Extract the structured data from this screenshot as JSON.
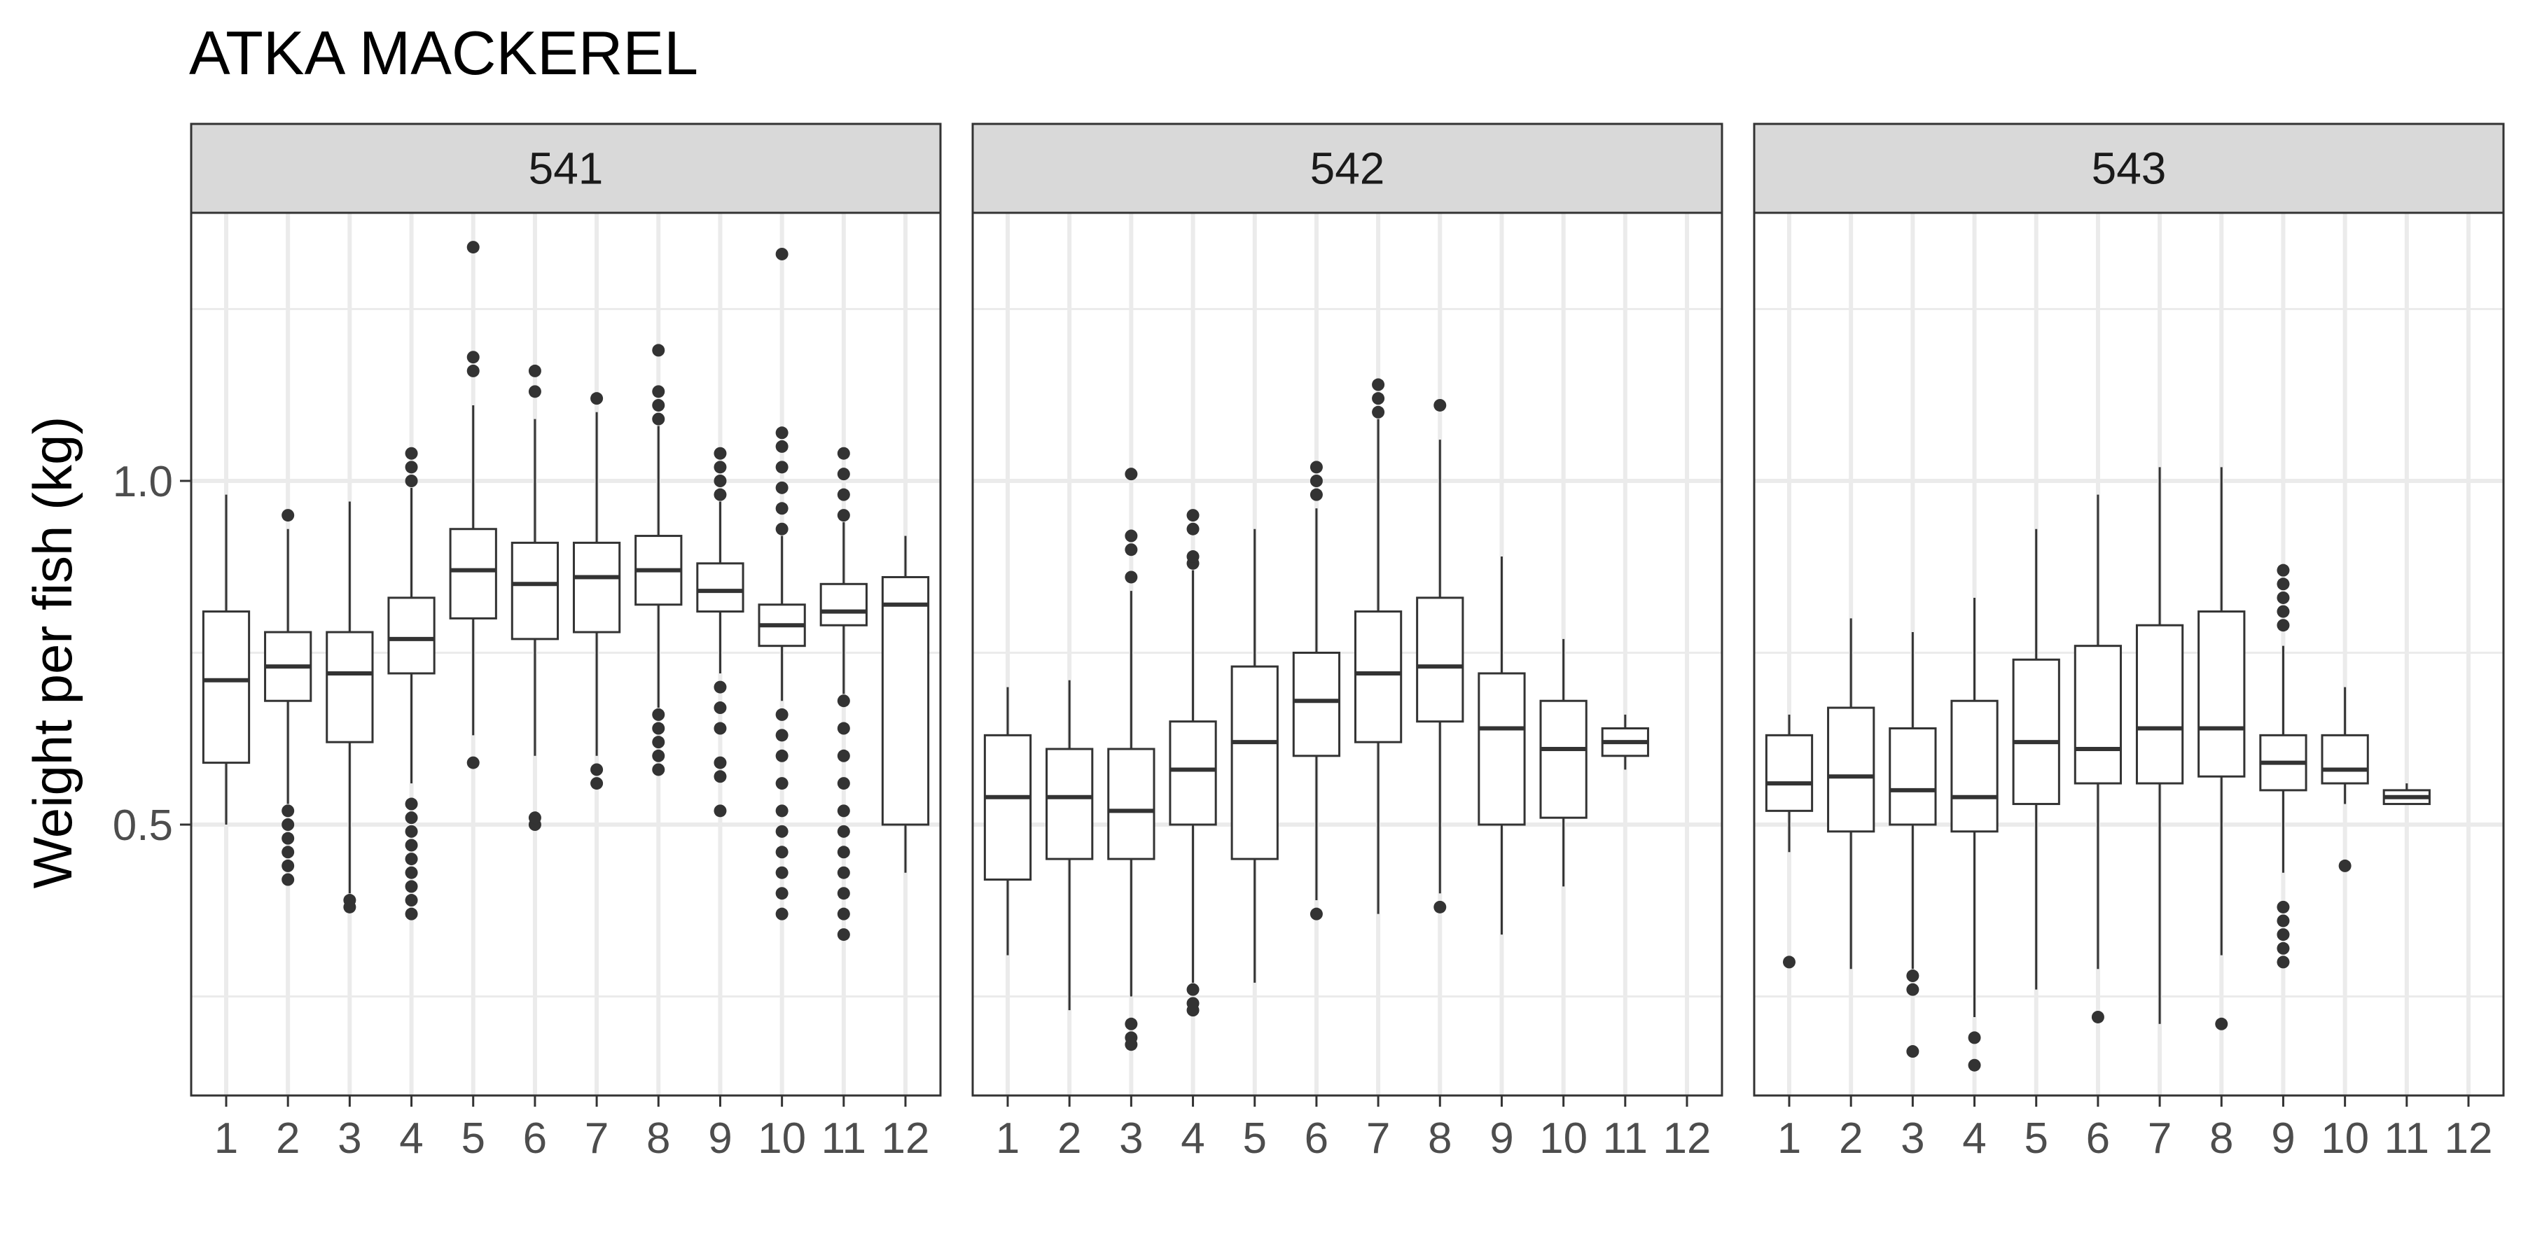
{
  "chart_data": {
    "type": "boxplot",
    "title": "ATKA MACKEREL",
    "xlabel": "",
    "ylabel": "Weight per fish (kg)",
    "ylim": [
      0.0,
      1.4
    ],
    "y_ticks": [
      0.5,
      1.0
    ],
    "y_tick_labels": [
      "0.5",
      "1.0"
    ],
    "y_minor_gridlines": [
      0.25,
      0.75,
      1.25
    ],
    "categories": [
      "1",
      "2",
      "3",
      "4",
      "5",
      "6",
      "7",
      "8",
      "9",
      "10",
      "11",
      "12"
    ],
    "grid": true,
    "facets": [
      {
        "label": "541",
        "boxes": [
          {
            "x": "1",
            "q1": 0.59,
            "median": 0.71,
            "q3": 0.81,
            "whisker_low": 0.5,
            "whisker_high": 0.98,
            "outliers": []
          },
          {
            "x": "2",
            "q1": 0.68,
            "median": 0.73,
            "q3": 0.78,
            "whisker_low": 0.53,
            "whisker_high": 0.93,
            "outliers": [
              0.42,
              0.44,
              0.46,
              0.48,
              0.5,
              0.52,
              0.95
            ]
          },
          {
            "x": "3",
            "q1": 0.62,
            "median": 0.72,
            "q3": 0.78,
            "whisker_low": 0.4,
            "whisker_high": 0.97,
            "outliers": [
              0.38,
              0.39
            ]
          },
          {
            "x": "4",
            "q1": 0.72,
            "median": 0.77,
            "q3": 0.83,
            "whisker_low": 0.56,
            "whisker_high": 0.99,
            "outliers": [
              0.37,
              0.39,
              0.41,
              0.43,
              0.45,
              0.47,
              0.49,
              0.51,
              0.53,
              1.0,
              1.02,
              1.04
            ]
          },
          {
            "x": "5",
            "q1": 0.8,
            "median": 0.87,
            "q3": 0.93,
            "whisker_low": 0.63,
            "whisker_high": 1.11,
            "outliers": [
              0.59,
              1.16,
              1.18,
              1.34
            ]
          },
          {
            "x": "6",
            "q1": 0.77,
            "median": 0.85,
            "q3": 0.91,
            "whisker_low": 0.6,
            "whisker_high": 1.09,
            "outliers": [
              0.5,
              0.51,
              1.13,
              1.16
            ]
          },
          {
            "x": "7",
            "q1": 0.78,
            "median": 0.86,
            "q3": 0.91,
            "whisker_low": 0.6,
            "whisker_high": 1.1,
            "outliers": [
              0.56,
              0.58,
              1.12
            ]
          },
          {
            "x": "8",
            "q1": 0.82,
            "median": 0.87,
            "q3": 0.92,
            "whisker_low": 0.67,
            "whisker_high": 1.08,
            "outliers": [
              0.58,
              0.6,
              0.62,
              0.64,
              0.66,
              1.09,
              1.11,
              1.13,
              1.19
            ]
          },
          {
            "x": "9",
            "q1": 0.81,
            "median": 0.84,
            "q3": 0.88,
            "whisker_low": 0.72,
            "whisker_high": 0.97,
            "outliers": [
              0.52,
              0.57,
              0.59,
              0.64,
              0.67,
              0.7,
              0.98,
              1.0,
              1.02,
              1.04
            ]
          },
          {
            "x": "10",
            "q1": 0.76,
            "median": 0.79,
            "q3": 0.82,
            "whisker_low": 0.68,
            "whisker_high": 0.92,
            "outliers": [
              0.37,
              0.4,
              0.43,
              0.46,
              0.49,
              0.52,
              0.56,
              0.6,
              0.63,
              0.66,
              0.93,
              0.96,
              0.99,
              1.02,
              1.05,
              1.07,
              1.33
            ]
          },
          {
            "x": "11",
            "q1": 0.79,
            "median": 0.81,
            "q3": 0.85,
            "whisker_low": 0.69,
            "whisker_high": 0.94,
            "outliers": [
              0.34,
              0.37,
              0.4,
              0.43,
              0.46,
              0.49,
              0.52,
              0.56,
              0.6,
              0.64,
              0.68,
              0.95,
              0.98,
              1.01,
              1.04
            ]
          },
          {
            "x": "12",
            "q1": 0.5,
            "median": 0.82,
            "q3": 0.86,
            "whisker_low": 0.43,
            "whisker_high": 0.92,
            "outliers": []
          }
        ]
      },
      {
        "label": "542",
        "boxes": [
          {
            "x": "1",
            "q1": 0.42,
            "median": 0.54,
            "q3": 0.63,
            "whisker_low": 0.31,
            "whisker_high": 0.7,
            "outliers": []
          },
          {
            "x": "2",
            "q1": 0.45,
            "median": 0.54,
            "q3": 0.61,
            "whisker_low": 0.23,
            "whisker_high": 0.71,
            "outliers": []
          },
          {
            "x": "3",
            "q1": 0.45,
            "median": 0.52,
            "q3": 0.61,
            "whisker_low": 0.25,
            "whisker_high": 0.84,
            "outliers": [
              0.18,
              0.19,
              0.21,
              0.86,
              0.9,
              0.92,
              1.01
            ]
          },
          {
            "x": "4",
            "q1": 0.5,
            "median": 0.58,
            "q3": 0.65,
            "whisker_low": 0.27,
            "whisker_high": 0.87,
            "outliers": [
              0.23,
              0.24,
              0.26,
              0.88,
              0.89,
              0.93,
              0.95
            ]
          },
          {
            "x": "5",
            "q1": 0.45,
            "median": 0.62,
            "q3": 0.73,
            "whisker_low": 0.27,
            "whisker_high": 0.93,
            "outliers": []
          },
          {
            "x": "6",
            "q1": 0.6,
            "median": 0.68,
            "q3": 0.75,
            "whisker_low": 0.39,
            "whisker_high": 0.96,
            "outliers": [
              0.37,
              0.98,
              1.0,
              1.02
            ]
          },
          {
            "x": "7",
            "q1": 0.62,
            "median": 0.72,
            "q3": 0.81,
            "whisker_low": 0.37,
            "whisker_high": 1.09,
            "outliers": [
              1.1,
              1.12,
              1.14
            ]
          },
          {
            "x": "8",
            "q1": 0.65,
            "median": 0.73,
            "q3": 0.83,
            "whisker_low": 0.4,
            "whisker_high": 1.06,
            "outliers": [
              0.38,
              1.11
            ]
          },
          {
            "x": "9",
            "q1": 0.5,
            "median": 0.64,
            "q3": 0.72,
            "whisker_low": 0.34,
            "whisker_high": 0.89,
            "outliers": []
          },
          {
            "x": "10",
            "q1": 0.51,
            "median": 0.61,
            "q3": 0.68,
            "whisker_low": 0.41,
            "whisker_high": 0.77,
            "outliers": []
          },
          {
            "x": "11",
            "q1": 0.6,
            "median": 0.62,
            "q3": 0.64,
            "whisker_low": 0.58,
            "whisker_high": 0.66,
            "outliers": []
          }
        ]
      },
      {
        "label": "543",
        "boxes": [
          {
            "x": "1",
            "q1": 0.52,
            "median": 0.56,
            "q3": 0.63,
            "whisker_low": 0.46,
            "whisker_high": 0.66,
            "outliers": [
              0.3
            ]
          },
          {
            "x": "2",
            "q1": 0.49,
            "median": 0.57,
            "q3": 0.67,
            "whisker_low": 0.29,
            "whisker_high": 0.8,
            "outliers": []
          },
          {
            "x": "3",
            "q1": 0.5,
            "median": 0.55,
            "q3": 0.64,
            "whisker_low": 0.29,
            "whisker_high": 0.78,
            "outliers": [
              0.17,
              0.26,
              0.28
            ]
          },
          {
            "x": "4",
            "q1": 0.49,
            "median": 0.54,
            "q3": 0.68,
            "whisker_low": 0.22,
            "whisker_high": 0.83,
            "outliers": [
              0.15,
              0.19
            ]
          },
          {
            "x": "5",
            "q1": 0.53,
            "median": 0.62,
            "q3": 0.74,
            "whisker_low": 0.26,
            "whisker_high": 0.93,
            "outliers": []
          },
          {
            "x": "6",
            "q1": 0.56,
            "median": 0.61,
            "q3": 0.76,
            "whisker_low": 0.29,
            "whisker_high": 0.98,
            "outliers": [
              0.22
            ]
          },
          {
            "x": "7",
            "q1": 0.56,
            "median": 0.64,
            "q3": 0.79,
            "whisker_low": 0.21,
            "whisker_high": 1.02,
            "outliers": []
          },
          {
            "x": "8",
            "q1": 0.57,
            "median": 0.64,
            "q3": 0.81,
            "whisker_low": 0.31,
            "whisker_high": 1.02,
            "outliers": [
              0.21
            ]
          },
          {
            "x": "9",
            "q1": 0.55,
            "median": 0.59,
            "q3": 0.63,
            "whisker_low": 0.43,
            "whisker_high": 0.76,
            "outliers": [
              0.3,
              0.32,
              0.34,
              0.36,
              0.38,
              0.79,
              0.81,
              0.83,
              0.85,
              0.87
            ]
          },
          {
            "x": "10",
            "q1": 0.56,
            "median": 0.58,
            "q3": 0.63,
            "whisker_low": 0.53,
            "whisker_high": 0.7,
            "outliers": [
              0.44
            ]
          },
          {
            "x": "11",
            "q1": 0.53,
            "median": 0.54,
            "q3": 0.55,
            "whisker_low": 0.53,
            "whisker_high": 0.56,
            "outliers": []
          }
        ]
      }
    ]
  },
  "colors": {
    "panel_border": "#333333",
    "strip_fill": "#d9d9d9",
    "grid_major": "#ebebeb",
    "box_line": "#333333",
    "outlier": "#333333",
    "tick_text": "#4d4d4d",
    "title_text": "#000000"
  }
}
